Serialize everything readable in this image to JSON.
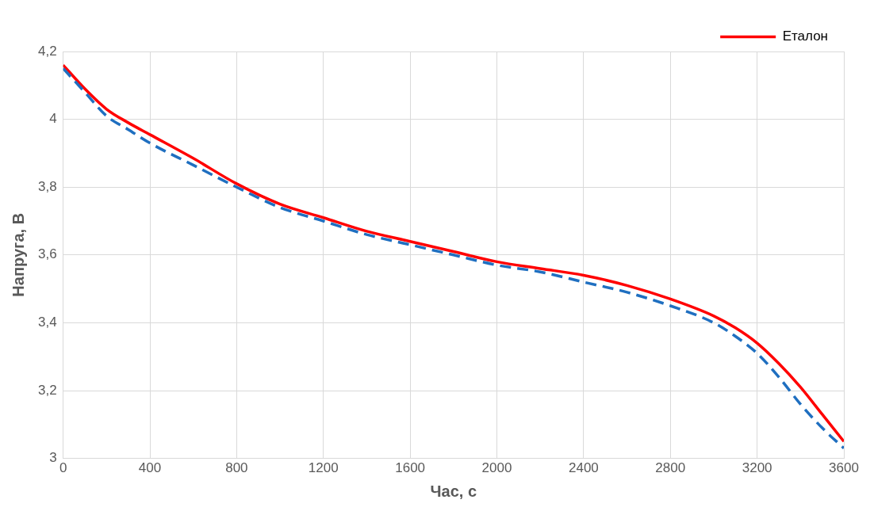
{
  "chart_data": {
    "type": "line",
    "xlabel": "Час, с",
    "ylabel": "Напруга, В",
    "xlim": [
      0,
      3600
    ],
    "xticks": [
      0,
      400,
      800,
      1200,
      1600,
      2000,
      2400,
      2800,
      3200,
      3600
    ],
    "ylim": [
      3,
      4.2
    ],
    "yticks": [
      {
        "value": 3,
        "label": "3"
      },
      {
        "value": 3.2,
        "label": "3,2"
      },
      {
        "value": 3.4,
        "label": "3,4"
      },
      {
        "value": 3.6,
        "label": "3,6"
      },
      {
        "value": 3.8,
        "label": "3,8"
      },
      {
        "value": 4,
        "label": "4"
      },
      {
        "value": 4.2,
        "label": "4,2"
      }
    ],
    "grid": true,
    "legend": "top right",
    "marker": "none",
    "x": [
      0,
      100,
      200,
      300,
      400,
      600,
      800,
      1000,
      1200,
      1400,
      1600,
      1800,
      2000,
      2200,
      2400,
      2600,
      2800,
      3000,
      3100,
      3200,
      3300,
      3400,
      3500,
      3600
    ],
    "series": [
      {
        "color": "#1f6fc0",
        "line_style": "dashed",
        "values": [
          4.15,
          4.08,
          4.01,
          3.97,
          3.93,
          3.865,
          3.8,
          3.74,
          3.7,
          3.66,
          3.63,
          3.6,
          3.57,
          3.55,
          3.52,
          3.49,
          3.45,
          3.4,
          3.36,
          3.31,
          3.24,
          3.16,
          3.09,
          3.03
        ]
      },
      {
        "name": "Еталон",
        "color": "#ff0000",
        "line_style": "solid",
        "values": [
          4.16,
          4.09,
          4.03,
          3.99,
          3.955,
          3.885,
          3.81,
          3.75,
          3.71,
          3.67,
          3.64,
          3.61,
          3.58,
          3.56,
          3.54,
          3.51,
          3.47,
          3.42,
          3.385,
          3.34,
          3.28,
          3.21,
          3.13,
          3.05
        ]
      }
    ]
  }
}
